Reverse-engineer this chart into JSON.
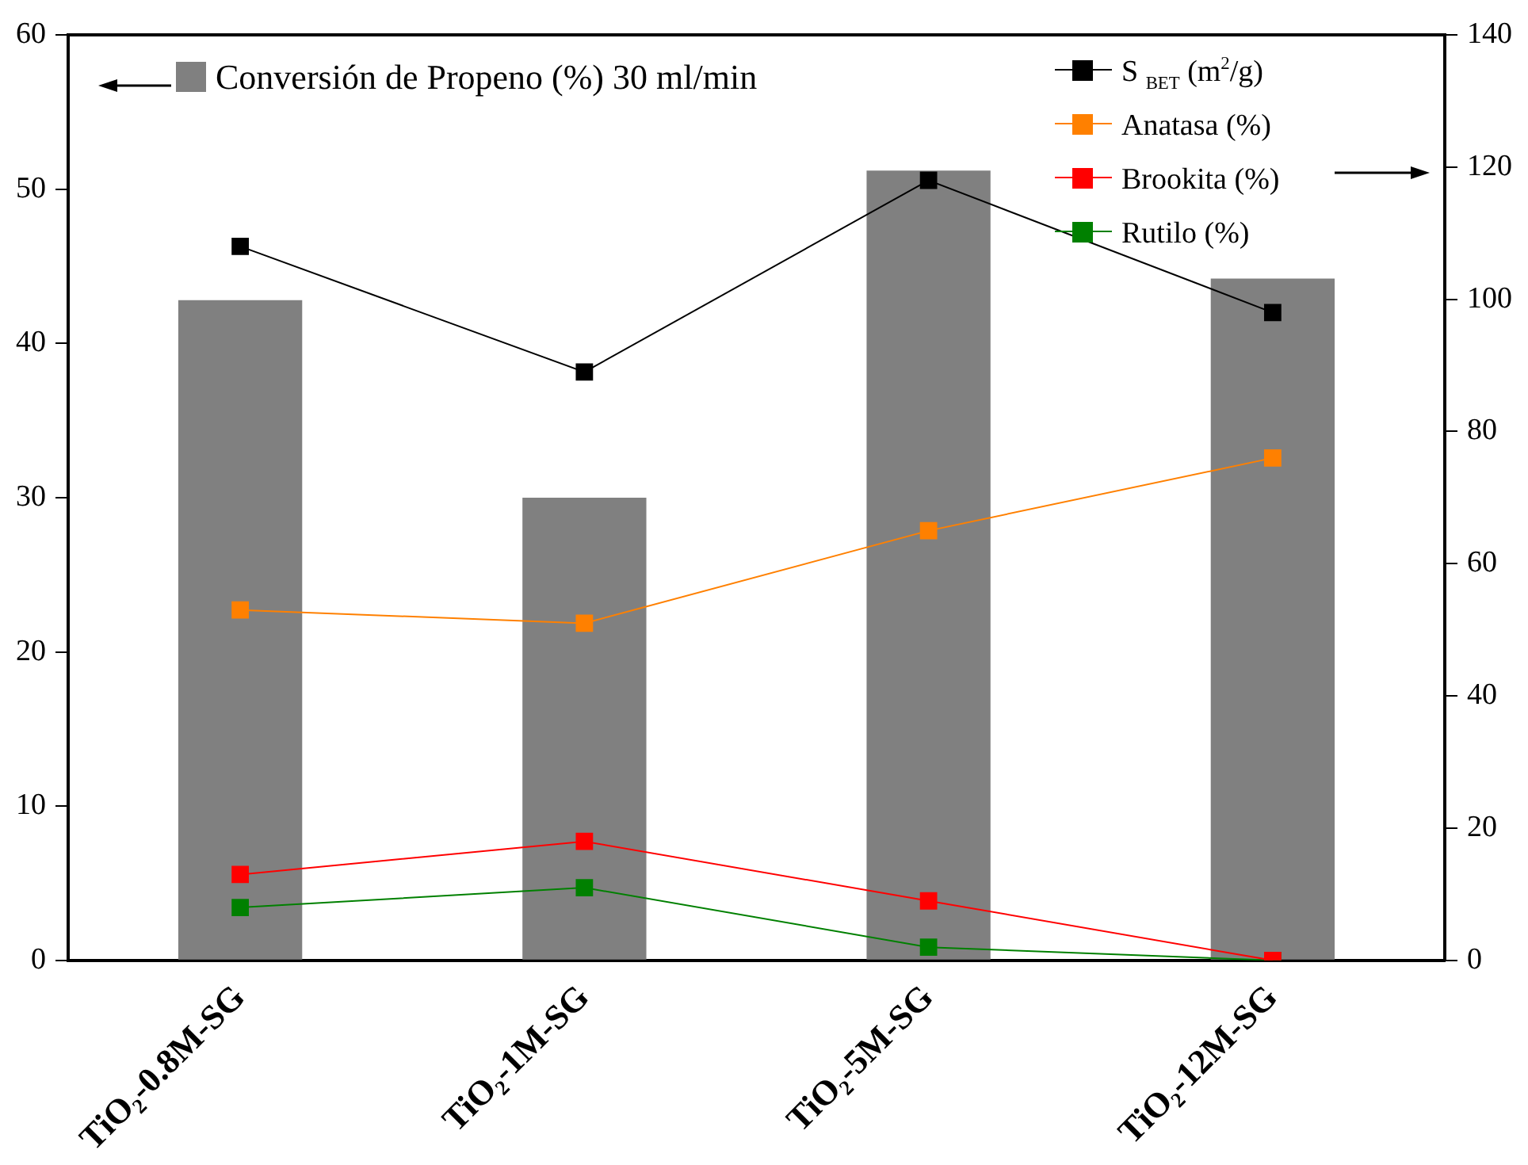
{
  "chart_data": {
    "type": "bar",
    "categories": [
      "TiO₂-0.8M-SG",
      "TiO₂-1M-SG",
      "TiO₂-5M-SG",
      "TiO₂-12M-SG"
    ],
    "series": [
      {
        "name": "Conversión de Propeno (%) 30 ml/min",
        "color": "#808080",
        "values": [
          42.8,
          30.0,
          51.2,
          44.2
        ]
      },
      {
        "name": "S $_{BET}$ (m$^{2}$/g)",
        "type": "line",
        "axis": "y2",
        "color": "#000000",
        "values": [
          108,
          89,
          118,
          98
        ]
      },
      {
        "name": "Anatasa (%)",
        "type": "line",
        "axis": "y2",
        "color": "#ff8000",
        "values": [
          53,
          51,
          65,
          76
        ]
      },
      {
        "name": "Brookita (%)",
        "type": "line",
        "axis": "y2",
        "color": "#ff0000",
        "values": [
          13,
          18,
          9,
          0
        ]
      },
      {
        "name": "Rutilo (%)",
        "type": "line",
        "axis": "y2",
        "color": "#008000",
        "values": [
          8,
          11,
          2,
          0
        ]
      }
    ],
    "ylim": [
      0,
      60
    ],
    "yticks": [
      0,
      10,
      20,
      30,
      40,
      50,
      60
    ],
    "y2lim": [
      0,
      140
    ],
    "y2ticks": [
      0,
      20,
      40,
      60,
      80,
      100,
      120,
      140
    ],
    "marker": "square",
    "grid": false,
    "legend": "top"
  }
}
